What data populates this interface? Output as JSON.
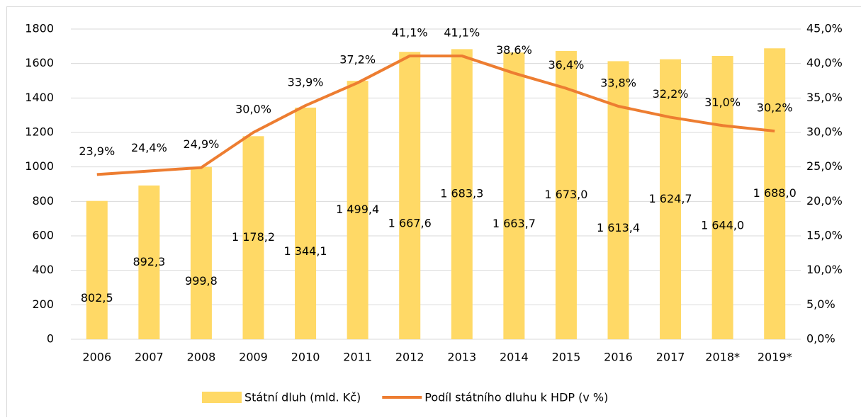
{
  "chart_data": {
    "type": "bar",
    "categories": [
      "2006",
      "2007",
      "2008",
      "2009",
      "2010",
      "2011",
      "2012",
      "2013",
      "2014",
      "2015",
      "2016",
      "2017",
      "2018*",
      "2019*"
    ],
    "series": [
      {
        "name": "Státní dluh (mld. Kč)",
        "type": "bar",
        "color": "#ffd966",
        "values": [
          802.5,
          892.3,
          999.8,
          1178.2,
          1344.1,
          1499.4,
          1667.6,
          1683.3,
          1663.7,
          1673.0,
          1613.4,
          1624.7,
          1644.0,
          1688.0
        ],
        "value_labels": [
          "802,5",
          "892,3",
          "999,8",
          "1 178,2",
          "1 344,1",
          "1 499,4",
          "1 667,6",
          "1 683,3",
          "1 663,7",
          "1 673,0",
          "1 613,4",
          "1 624,7",
          "1 644,0",
          "1 688,0"
        ]
      },
      {
        "name": "Podíl státního dluhu k HDP (v %)",
        "type": "line",
        "axis": "y2",
        "color": "#ed7d31",
        "values": [
          23.9,
          24.4,
          24.9,
          30.0,
          33.9,
          37.2,
          41.1,
          41.1,
          38.6,
          36.4,
          33.8,
          32.2,
          31.0,
          30.2
        ],
        "value_labels": [
          "23,9%",
          "24,4%",
          "24,9%",
          "30,0%",
          "33,9%",
          "37,2%",
          "41,1%",
          "41,1%",
          "38,6%",
          "36,4%",
          "33,8%",
          "32,2%",
          "31,0%",
          "30,2%"
        ]
      }
    ],
    "ylim": [
      0,
      1800
    ],
    "yticks": [
      0,
      200,
      400,
      600,
      800,
      1000,
      1200,
      1400,
      1600,
      1800
    ],
    "y2lim": [
      0,
      45
    ],
    "y2ticks": [
      {
        "value": 0,
        "label": "0,0%"
      },
      {
        "value": 5,
        "label": "5,0%"
      },
      {
        "value": 10,
        "label": "10,0%"
      },
      {
        "value": 15,
        "label": "15,0%"
      },
      {
        "value": 20,
        "label": "20,0%"
      },
      {
        "value": 25,
        "label": "25,0%"
      },
      {
        "value": 30,
        "label": "30,0%"
      },
      {
        "value": 35,
        "label": "35,0%"
      },
      {
        "value": 40,
        "label": "40,0%"
      },
      {
        "value": 45,
        "label": "45,0%"
      }
    ],
    "grid": true,
    "legend": "bottom"
  }
}
